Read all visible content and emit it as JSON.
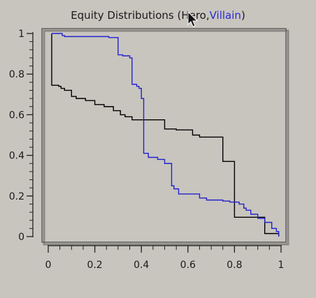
{
  "title_prefix": "Equity Distributions (Hero,",
  "title_villain": "Villain",
  "title_suffix": ")",
  "chart_data": {
    "type": "line",
    "title": "Equity Distributions (Hero,Villain)",
    "xlim": [
      0,
      1
    ],
    "ylim": [
      0,
      1
    ],
    "x_ticks": [
      0,
      0.2,
      0.4,
      0.6,
      0.8,
      1
    ],
    "x_tick_labels": [
      "0",
      "0.2",
      "0.4",
      "0.6",
      "0.8",
      "1"
    ],
    "y_ticks": [
      0,
      0.2,
      0.4,
      0.6,
      0.8,
      1
    ],
    "y_tick_labels": [
      "0",
      "0.2",
      "0.4",
      "0.6",
      "0.8",
      "1"
    ],
    "grid": false,
    "series": [
      {
        "name": "Hero",
        "color": "#000000",
        "step": true,
        "x": [
          0.015,
          0.015,
          0.045,
          0.055,
          0.07,
          0.1,
          0.12,
          0.16,
          0.2,
          0.24,
          0.28,
          0.31,
          0.33,
          0.36,
          0.5,
          0.55,
          0.62,
          0.65,
          0.75,
          0.8,
          0.93,
          0.99
        ],
        "y": [
          1,
          0.745,
          0.74,
          0.73,
          0.72,
          0.69,
          0.68,
          0.67,
          0.65,
          0.64,
          0.62,
          0.6,
          0.59,
          0.575,
          0.53,
          0.525,
          0.5,
          0.49,
          0.37,
          0.095,
          0.015,
          0.0
        ]
      },
      {
        "name": "Villain",
        "color": "#2222cc",
        "step": true,
        "x": [
          0.015,
          0.06,
          0.07,
          0.26,
          0.3,
          0.32,
          0.35,
          0.36,
          0.38,
          0.39,
          0.4,
          0.41,
          0.43,
          0.47,
          0.5,
          0.53,
          0.54,
          0.56,
          0.65,
          0.68,
          0.75,
          0.78,
          0.82,
          0.84,
          0.85,
          0.87,
          0.9,
          0.93,
          0.96,
          0.98,
          0.99
        ],
        "y": [
          1,
          0.99,
          0.985,
          0.98,
          0.895,
          0.89,
          0.88,
          0.75,
          0.74,
          0.73,
          0.68,
          0.41,
          0.39,
          0.38,
          0.36,
          0.25,
          0.235,
          0.21,
          0.19,
          0.18,
          0.175,
          0.17,
          0.16,
          0.14,
          0.13,
          0.11,
          0.09,
          0.07,
          0.04,
          0.025,
          0.0
        ]
      }
    ]
  },
  "icons": {
    "cursor": "mouse-pointer-icon"
  }
}
